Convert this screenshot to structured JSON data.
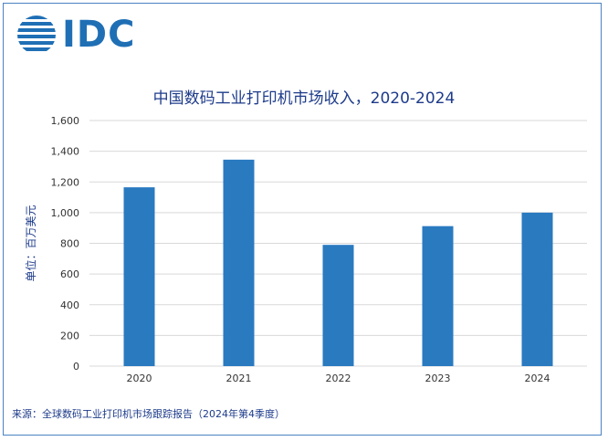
{
  "logo": {
    "text": "IDC"
  },
  "chart_data": {
    "type": "bar",
    "title": "中国数码工业打印机市场收入，2020-2024",
    "ylabel": "单位：百万美元",
    "xlabel": "",
    "categories": [
      "2020",
      "2021",
      "2022",
      "2023",
      "2024"
    ],
    "values": [
      1165,
      1345,
      790,
      912,
      1000
    ],
    "ylim": [
      0,
      1600
    ],
    "yticks": [
      "0",
      "200",
      "400",
      "600",
      "800",
      "1,000",
      "1,200",
      "1,400",
      "1,600"
    ],
    "ytick_values": [
      0,
      200,
      400,
      600,
      800,
      1000,
      1200,
      1400,
      1600
    ],
    "grid": true,
    "bar_color": "#2a7ac0",
    "grid_color": "#d9d9d9"
  },
  "footer": {
    "source": "来源：全球数码工业打印机市场跟踪报告（2024年第4季度）"
  }
}
